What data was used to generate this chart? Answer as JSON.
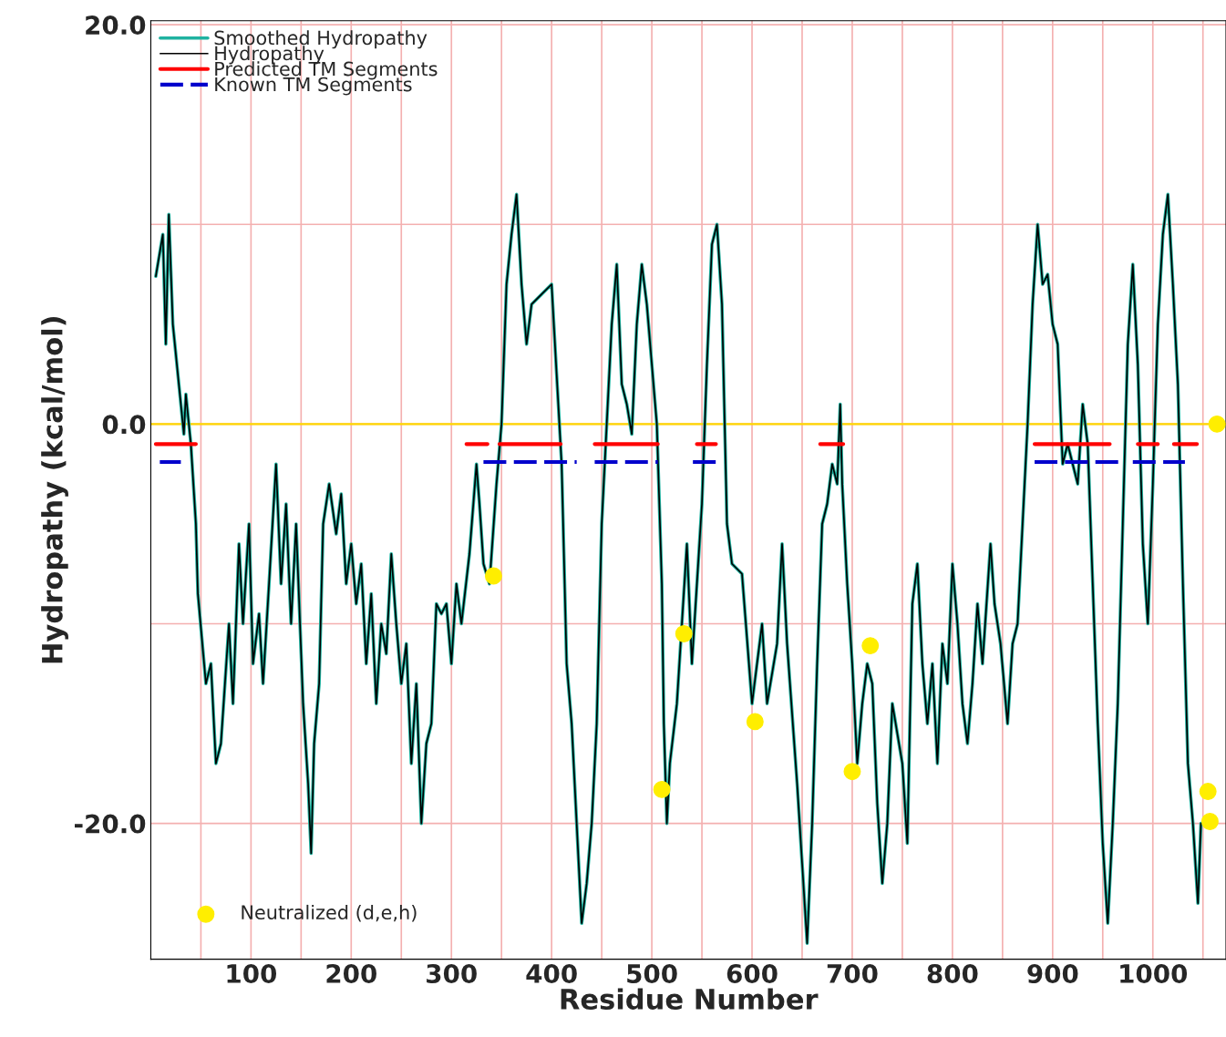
{
  "chart_data": {
    "type": "line",
    "xlabel": "Residue Number",
    "ylabel": "Hydropathy (kcal/mol)",
    "xlim": [
      0,
      1073
    ],
    "ylim": [
      -26.8,
      20.2
    ],
    "xticks": [
      {
        "value": 50,
        "label": null
      },
      100,
      {
        "value": 150,
        "label": null
      },
      200,
      {
        "value": 250,
        "label": null
      },
      300,
      {
        "value": 350,
        "label": null
      },
      400,
      {
        "value": 450,
        "label": null
      },
      500,
      {
        "value": 550,
        "label": null
      },
      600,
      {
        "value": 650,
        "label": null
      },
      700,
      {
        "value": 750,
        "label": null
      },
      800,
      {
        "value": 850,
        "label": null
      },
      900,
      {
        "value": 950,
        "label": null
      },
      1000,
      {
        "value": 1050,
        "label": null
      }
    ],
    "yticks": [
      {
        "value": -20,
        "label": "-20.0"
      },
      {
        "value": -10,
        "label": null
      },
      {
        "value": 0,
        "label": "0.0"
      },
      {
        "value": 10,
        "label": null
      },
      {
        "value": 20,
        "label": "20.0"
      }
    ],
    "grid": true,
    "legend": "top left",
    "marker": "none",
    "ref_lines": [
      {
        "axis": "y",
        "value": 0,
        "color": "#ffd700"
      }
    ],
    "series": [
      {
        "name": "Smoothed Hydropathy",
        "color": "#20b2a0",
        "x": [
          5,
          12,
          15,
          18,
          22,
          28,
          33,
          35,
          40,
          45,
          47,
          55,
          60,
          65,
          70,
          78,
          82,
          88,
          92,
          98,
          102,
          108,
          112,
          118,
          125,
          130,
          135,
          140,
          145,
          152,
          157,
          160,
          163,
          168,
          172,
          178,
          185,
          190,
          195,
          200,
          205,
          210,
          215,
          220,
          225,
          230,
          235,
          240,
          245,
          250,
          255,
          260,
          265,
          270,
          275,
          280,
          285,
          290,
          295,
          300,
          305,
          310,
          318,
          325,
          328,
          332,
          338,
          345,
          350,
          355,
          360,
          365,
          370,
          375,
          380,
          390,
          400,
          405,
          410,
          415,
          420,
          425,
          430,
          435,
          440,
          445,
          450,
          455,
          460,
          465,
          470,
          475,
          480,
          485,
          490,
          495,
          505,
          510,
          512,
          515,
          518,
          525,
          530,
          535,
          540,
          545,
          550,
          555,
          560,
          565,
          570,
          575,
          580,
          590,
          600,
          605,
          610,
          615,
          625,
          630,
          635,
          645,
          650,
          655,
          660,
          665,
          670,
          675,
          680,
          685,
          688,
          690,
          695,
          700,
          705,
          710,
          715,
          720,
          725,
          730,
          735,
          740,
          750,
          755,
          760,
          765,
          770,
          775,
          780,
          785,
          790,
          795,
          800,
          805,
          810,
          815,
          820,
          825,
          830,
          838,
          842,
          848,
          855,
          860,
          865,
          870,
          875,
          880,
          885,
          890,
          895,
          900,
          905,
          910,
          915,
          920,
          925,
          930,
          935,
          940,
          945,
          950,
          955,
          960,
          965,
          970,
          975,
          980,
          985,
          990,
          995,
          1000,
          1005,
          1010,
          1015,
          1020,
          1025,
          1030,
          1035,
          1040,
          1045,
          1048
        ],
        "values": [
          7.4,
          9.5,
          4,
          10.5,
          5,
          2,
          -0.5,
          1.5,
          -1,
          -5,
          -8.5,
          -13,
          -12,
          -17,
          -16,
          -10,
          -14,
          -6,
          -10,
          -5,
          -12,
          -9.5,
          -13,
          -8,
          -2,
          -8,
          -4,
          -10,
          -5,
          -14,
          -18,
          -21.5,
          -16,
          -13,
          -5,
          -3,
          -5.5,
          -3.5,
          -8,
          -6,
          -9,
          -7,
          -12,
          -8.5,
          -14,
          -10,
          -11.5,
          -6.5,
          -10,
          -13,
          -11,
          -17,
          -13,
          -20,
          -16,
          -15,
          -9,
          -9.5,
          -9,
          -12,
          -8,
          -10,
          -6.5,
          -2,
          -4,
          -7,
          -8,
          -3,
          0,
          7,
          9.5,
          11.5,
          7,
          4,
          6,
          6.5,
          7,
          2.5,
          -2,
          -12,
          -15,
          -20,
          -25,
          -23,
          -20,
          -15,
          -5,
          0,
          5,
          8,
          2,
          1,
          -0.5,
          5,
          8,
          6,
          0,
          -8,
          -15,
          -20,
          -17,
          -14,
          -10,
          -6,
          -12,
          -8,
          -4,
          3,
          9,
          10,
          6,
          -5,
          -7,
          -7.5,
          -14,
          -12,
          -10,
          -14,
          -11,
          -6,
          -11,
          -18,
          -22,
          -26,
          -20,
          -12,
          -5,
          -4,
          -2,
          -3,
          1,
          -3,
          -8,
          -12,
          -17,
          -14,
          -12,
          -13,
          -19,
          -23,
          -20,
          -14,
          -17,
          -21,
          -9,
          -7,
          -12,
          -15,
          -12,
          -17,
          -11,
          -13,
          -7,
          -10,
          -14,
          -16,
          -13,
          -9,
          -12,
          -6,
          -9,
          -11,
          -15,
          -11,
          -10,
          -5,
          0,
          6,
          10,
          7,
          7.5,
          5,
          4,
          -2,
          -1,
          -2,
          -3,
          1,
          -1,
          -8,
          -15,
          -21,
          -25,
          -20,
          -14,
          -5,
          4,
          8,
          3,
          -6,
          -10,
          -3,
          5,
          9.5,
          11.5,
          7,
          2,
          -8,
          -17,
          -20,
          -24,
          -20
        ]
      },
      {
        "name": "Hydropathy",
        "color": "#000000",
        "x": [
          5,
          12,
          15,
          18,
          22,
          28,
          33,
          35,
          40,
          45,
          47,
          55,
          60,
          65,
          70,
          78,
          82,
          88,
          92,
          98,
          102,
          108,
          112,
          118,
          125,
          130,
          135,
          140,
          145,
          152,
          157,
          160,
          163,
          168,
          172,
          178,
          185,
          190,
          195,
          200,
          205,
          210,
          215,
          220,
          225,
          230,
          235,
          240,
          245,
          250,
          255,
          260,
          265,
          270,
          275,
          280,
          285,
          290,
          295,
          300,
          305,
          310,
          318,
          325,
          328,
          332,
          338,
          345,
          350,
          355,
          360,
          365,
          370,
          375,
          380,
          390,
          400,
          405,
          410,
          415,
          420,
          425,
          430,
          435,
          440,
          445,
          450,
          455,
          460,
          465,
          470,
          475,
          480,
          485,
          490,
          495,
          505,
          510,
          512,
          515,
          518,
          525,
          530,
          535,
          540,
          545,
          550,
          555,
          560,
          565,
          570,
          575,
          580,
          590,
          600,
          605,
          610,
          615,
          625,
          630,
          635,
          645,
          650,
          655,
          660,
          665,
          670,
          675,
          680,
          685,
          688,
          690,
          695,
          700,
          705,
          710,
          715,
          720,
          725,
          730,
          735,
          740,
          750,
          755,
          760,
          765,
          770,
          775,
          780,
          785,
          790,
          795,
          800,
          805,
          810,
          815,
          820,
          825,
          830,
          838,
          842,
          848,
          855,
          860,
          865,
          870,
          875,
          880,
          885,
          890,
          895,
          900,
          905,
          910,
          915,
          920,
          925,
          930,
          935,
          940,
          945,
          950,
          955,
          960,
          965,
          970,
          975,
          980,
          985,
          990,
          995,
          1000,
          1005,
          1010,
          1015,
          1020,
          1025,
          1030,
          1035,
          1040,
          1045,
          1048
        ],
        "values": [
          7.4,
          9.5,
          4,
          10.5,
          5,
          2,
          -0.5,
          1.5,
          -1,
          -5,
          -8.5,
          -13,
          -12,
          -17,
          -16,
          -10,
          -14,
          -6,
          -10,
          -5,
          -12,
          -9.5,
          -13,
          -8,
          -2,
          -8,
          -4,
          -10,
          -5,
          -14,
          -18,
          -21.5,
          -16,
          -13,
          -5,
          -3,
          -5.5,
          -3.5,
          -8,
          -6,
          -9,
          -7,
          -12,
          -8.5,
          -14,
          -10,
          -11.5,
          -6.5,
          -10,
          -13,
          -11,
          -17,
          -13,
          -20,
          -16,
          -15,
          -9,
          -9.5,
          -9,
          -12,
          -8,
          -10,
          -6.5,
          -2,
          -4,
          -7,
          -8,
          -3,
          0,
          7,
          9.5,
          11.5,
          7,
          4,
          6,
          6.5,
          7,
          2.5,
          -2,
          -12,
          -15,
          -20,
          -25,
          -23,
          -20,
          -15,
          -5,
          0,
          5,
          8,
          2,
          1,
          -0.5,
          5,
          8,
          6,
          0,
          -8,
          -15,
          -20,
          -17,
          -14,
          -10,
          -6,
          -12,
          -8,
          -4,
          3,
          9,
          10,
          6,
          -5,
          -7,
          -7.5,
          -14,
          -12,
          -10,
          -14,
          -11,
          -6,
          -11,
          -18,
          -22,
          -26,
          -20,
          -12,
          -5,
          -4,
          -2,
          -3,
          1,
          -3,
          -8,
          -12,
          -17,
          -14,
          -12,
          -13,
          -19,
          -23,
          -20,
          -14,
          -17,
          -21,
          -9,
          -7,
          -12,
          -15,
          -12,
          -17,
          -11,
          -13,
          -7,
          -10,
          -14,
          -16,
          -13,
          -9,
          -12,
          -6,
          -9,
          -11,
          -15,
          -11,
          -10,
          -5,
          0,
          6,
          10,
          7,
          7.5,
          5,
          4,
          -2,
          -1,
          -2,
          -3,
          1,
          -1,
          -8,
          -15,
          -21,
          -25,
          -20,
          -14,
          -5,
          4,
          8,
          3,
          -6,
          -10,
          -3,
          5,
          9.5,
          11.5,
          7,
          2,
          -8,
          -17,
          -20,
          -24,
          -20
        ]
      },
      {
        "name": "Predicted TM Segments",
        "color": "#ff0000",
        "line_style": "solid",
        "x": [
          5,
          45,
          null,
          315,
          336,
          null,
          348,
          409,
          null,
          443,
          506,
          null,
          545,
          564,
          null,
          668,
          691,
          null,
          882,
          957,
          null,
          985,
          1005,
          null,
          1021,
          1044
        ],
        "values": [
          -1,
          -1,
          null,
          -1,
          -1,
          null,
          -1,
          -1,
          null,
          -1,
          -1,
          null,
          -1,
          -1,
          null,
          -1,
          -1,
          null,
          -1,
          -1,
          null,
          -1,
          -1,
          null,
          -1,
          -1
        ]
      },
      {
        "name": "Known TM Segments",
        "color": "#0000cc",
        "line_style": "dashed",
        "x": [
          9,
          30,
          null,
          332,
          425,
          null,
          443,
          506,
          null,
          541,
          565,
          null,
          882,
          966,
          null,
          980,
          1032
        ],
        "values": [
          -1.9,
          -1.9,
          null,
          -1.9,
          -1.9,
          null,
          -1.9,
          -1.9,
          null,
          -1.9,
          -1.9,
          null,
          -1.9,
          -1.9,
          null,
          -1.9,
          -1.9
        ]
      },
      {
        "name": "Neutralized (d,e,h)",
        "type": "scatter",
        "marker": "circle",
        "color": "#ffee00",
        "x": [
          342,
          510,
          532,
          603,
          700,
          718,
          1055,
          1057,
          1064
        ],
        "values": [
          -7.6,
          -18.3,
          -10.5,
          -14.9,
          -17.4,
          -11.1,
          -18.4,
          -19.9,
          0.0
        ]
      }
    ]
  }
}
